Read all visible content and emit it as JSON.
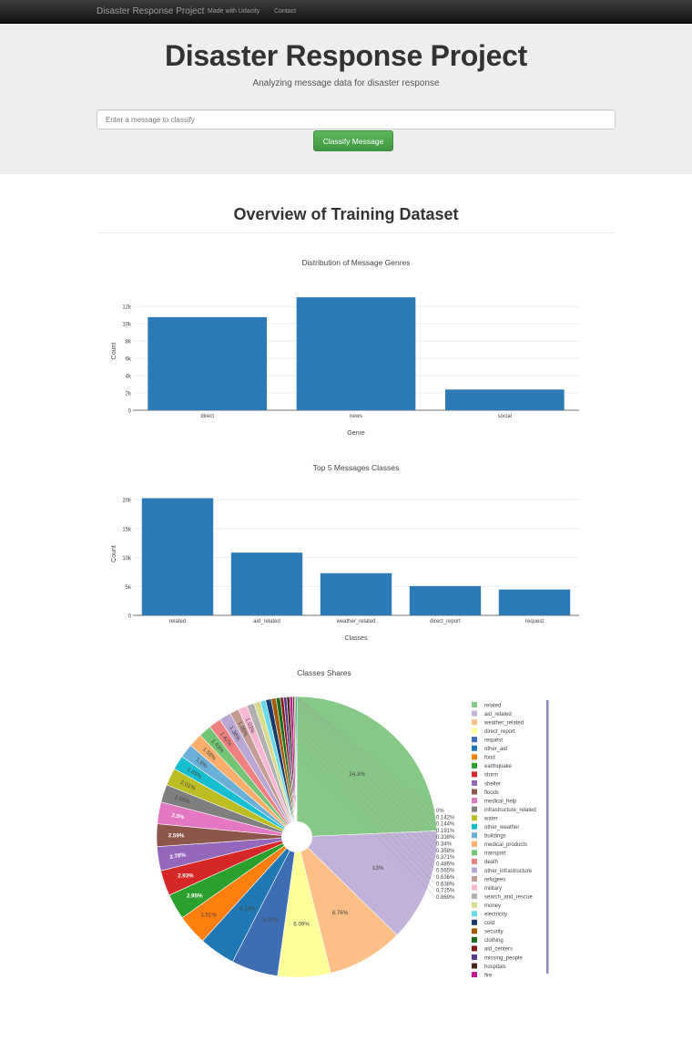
{
  "navbar": {
    "brand": "Disaster Response Project",
    "links": [
      "Made with Udacity",
      "Contact"
    ]
  },
  "header": {
    "title": "Disaster Response Project",
    "subtitle": "Analyzing message data for disaster response",
    "input_placeholder": "Enter a message to classify",
    "button_label": "Classify Message"
  },
  "section_title": "Overview of Training Dataset",
  "chart_data": [
    {
      "type": "bar",
      "title": "Distribution of Message Genres",
      "xlabel": "Genre",
      "ylabel": "Count",
      "categories": [
        "direct",
        "news",
        "social"
      ],
      "values": [
        10766,
        13054,
        2396
      ],
      "ylim": [
        0,
        13700
      ],
      "yticks": [
        0,
        2000,
        4000,
        6000,
        8000,
        10000,
        12000
      ],
      "ytick_labels": [
        "0",
        "2k",
        "4k",
        "6k",
        "8k",
        "10k",
        "12k"
      ],
      "color": "#2c7bb6",
      "grid": true
    },
    {
      "type": "bar",
      "title": "Top 5 Messages Classes",
      "xlabel": "Classes",
      "ylabel": "Count",
      "categories": [
        "related",
        "aid_related",
        "weather_related",
        "direct_report",
        "request"
      ],
      "values": [
        20282,
        10860,
        7297,
        5075,
        4474
      ],
      "ylim": [
        0,
        21300
      ],
      "yticks": [
        0,
        5000,
        10000,
        15000,
        20000
      ],
      "ytick_labels": [
        "0",
        "5k",
        "10k",
        "15k",
        "20k"
      ],
      "color": "#2c7bb6",
      "grid": true
    },
    {
      "type": "pie",
      "title": "Classes Shares",
      "hole": true,
      "legend_position": "right",
      "slices": [
        {
          "name": "related",
          "value": 24.3,
          "label": "24.3%",
          "color": "#86c986"
        },
        {
          "name": "aid_related",
          "value": 13,
          "label": "13%",
          "color": "#c2b1d9"
        },
        {
          "name": "weather_related",
          "value": 8.76,
          "label": "8.76%",
          "color": "#fdbf86"
        },
        {
          "name": "direct_report",
          "value": 6.09,
          "label": "6.09%",
          "color": "#ffff99"
        },
        {
          "name": "request",
          "value": 5.37,
          "label": "5.37%",
          "color": "#3e6db4"
        },
        {
          "name": "other_aid",
          "value": 4.14,
          "label": "4.14%",
          "color": "#1f77b4"
        },
        {
          "name": "food",
          "value": 3.51,
          "label": "3.51%",
          "color": "#ff7f0e"
        },
        {
          "name": "earthquake",
          "value": 2.95,
          "label": "2.95%",
          "color": "#2ca02c"
        },
        {
          "name": "storm",
          "value": 2.93,
          "label": "2.93%",
          "color": "#d62728"
        },
        {
          "name": "shelter",
          "value": 2.78,
          "label": "2.78%",
          "color": "#9467bd"
        },
        {
          "name": "floods",
          "value": 2.59,
          "label": "2.59%",
          "color": "#8c564b"
        },
        {
          "name": "medical_help",
          "value": 2.5,
          "label": "2.5%",
          "color": "#e377c2"
        },
        {
          "name": "infrastructure_related",
          "value": 2.05,
          "label": "2.05%",
          "color": "#7f7f7f"
        },
        {
          "name": "water",
          "value": 2.01,
          "label": "2.01%",
          "color": "#bcbd22"
        },
        {
          "name": "other_weather",
          "value": 1.65,
          "label": "1.65%",
          "color": "#17becf"
        },
        {
          "name": "buildings",
          "value": 1.6,
          "label": "1.6%",
          "color": "#6baed6"
        },
        {
          "name": "medical_products",
          "value": 1.58,
          "label": "1.58%",
          "color": "#fdae6b"
        },
        {
          "name": "transport",
          "value": 1.43,
          "label": "1.43%",
          "color": "#74c476"
        },
        {
          "name": "death",
          "value": 1.42,
          "label": "1.42%",
          "color": "#ef8080"
        },
        {
          "name": "other_infrastructure",
          "value": 1.36,
          "label": "1.36%",
          "color": "#b8a6d3"
        },
        {
          "name": "refugees",
          "value": 1.05,
          "label": "1.05%",
          "color": "#c49c94"
        },
        {
          "name": "military",
          "value": 1.03,
          "label": "1.03%",
          "color": "#f7b6d2"
        },
        {
          "name": "search_and_rescue",
          "value": 0.869,
          "label": "0.869%",
          "color": "#b0b0b0"
        },
        {
          "name": "money",
          "value": 0.725,
          "label": "0.725%",
          "color": "#dbdb8d"
        },
        {
          "name": "electricity",
          "value": 0.638,
          "label": "0.638%",
          "color": "#66d9ea"
        },
        {
          "name": "cold",
          "value": 0.636,
          "label": "0.636%",
          "color": "#1a3a6b"
        },
        {
          "name": "security",
          "value": 0.565,
          "label": "0.565%",
          "color": "#a65a00"
        },
        {
          "name": "clothing",
          "value": 0.486,
          "label": "0.486%",
          "color": "#1a6b1a"
        },
        {
          "name": "aid_centers",
          "value": 0.371,
          "label": "0.371%",
          "color": "#8b1a1a"
        },
        {
          "name": "missing_people",
          "value": 0.358,
          "label": "0.358%",
          "color": "#5a3a8a"
        },
        {
          "name": "hospitals",
          "value": 0.34,
          "label": "0.34%",
          "color": "#4a2a1a"
        },
        {
          "name": "fire",
          "value": 0.338,
          "label": "0.338%",
          "color": "#c2188b"
        },
        {
          "name": "",
          "value": 0.191,
          "label": "0.191%",
          "color": "#444444"
        },
        {
          "name": "",
          "value": 0.144,
          "label": "0.144%",
          "color": "#7a7a10"
        },
        {
          "name": "",
          "value": 0.142,
          "label": "0.142%",
          "color": "#118899"
        },
        {
          "name": "",
          "value": 0,
          "label": "0%",
          "color": "#aec7e8"
        }
      ]
    }
  ]
}
